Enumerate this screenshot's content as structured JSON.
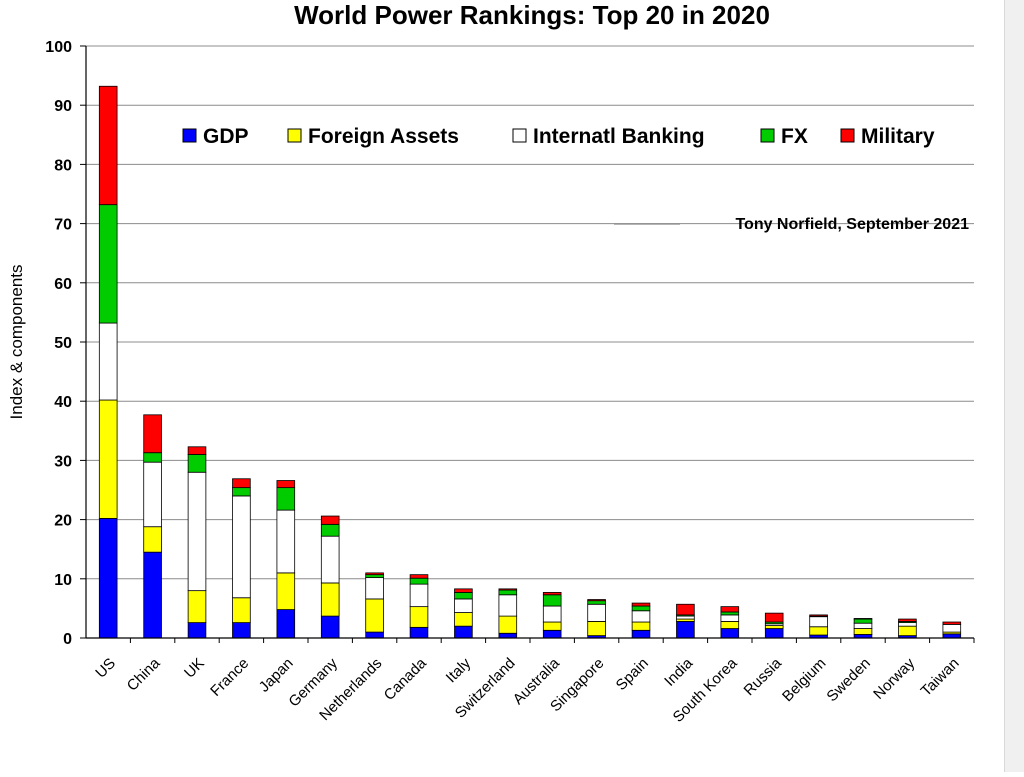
{
  "chart_data": {
    "type": "bar",
    "stacked": true,
    "title": "World Power Rankings: Top 20 in 2020",
    "xlabel": "",
    "ylabel": "Index & components",
    "ylim": [
      0,
      100
    ],
    "yticks": [
      0,
      10,
      20,
      30,
      40,
      50,
      60,
      70,
      80,
      90,
      100
    ],
    "grid": true,
    "legend_position": "top",
    "annotation": "Tony Norfield, September 2021",
    "categories": [
      "US",
      "China",
      "UK",
      "France",
      "Japan",
      "Germany",
      "Netherlands",
      "Canada",
      "Italy",
      "Switzerland",
      "Australia",
      "Singapore",
      "Spain",
      "India",
      "South Korea",
      "Russia",
      "Belgium",
      "Sweden",
      "Norway",
      "Taiwan"
    ],
    "series": [
      {
        "name": "GDP",
        "color": "#0000ff",
        "values": [
          20.2,
          14.5,
          2.6,
          2.6,
          4.8,
          3.7,
          1.0,
          1.8,
          2.0,
          0.8,
          1.3,
          0.4,
          1.3,
          2.8,
          1.6,
          1.6,
          0.5,
          0.6,
          0.4,
          0.7
        ]
      },
      {
        "name": "Foreign Assets",
        "color": "#ffff00",
        "values": [
          20.0,
          4.3,
          5.4,
          4.2,
          6.2,
          5.6,
          5.6,
          3.5,
          2.3,
          2.9,
          1.4,
          2.4,
          1.4,
          0.4,
          1.2,
          0.5,
          1.4,
          1.0,
          1.6,
          0.3
        ]
      },
      {
        "name": "Internatl Banking",
        "color": "#ffffff",
        "values": [
          13.0,
          10.9,
          20.0,
          17.2,
          10.6,
          7.9,
          3.6,
          3.8,
          2.3,
          3.6,
          2.7,
          2.9,
          1.9,
          0.5,
          1.1,
          0.3,
          1.7,
          0.9,
          0.6,
          1.3
        ]
      },
      {
        "name": "FX",
        "color": "#00cc00",
        "values": [
          20.0,
          1.6,
          3.0,
          1.4,
          3.8,
          2.0,
          0.5,
          1.0,
          1.1,
          0.8,
          1.9,
          0.6,
          0.8,
          0.2,
          0.5,
          0.3,
          0.1,
          0.7,
          0.2,
          0.0
        ]
      },
      {
        "name": "Military",
        "color": "#ff0000",
        "values": [
          20.0,
          6.4,
          1.3,
          1.5,
          1.2,
          1.4,
          0.3,
          0.6,
          0.6,
          0.2,
          0.4,
          0.2,
          0.5,
          1.8,
          0.9,
          1.5,
          0.2,
          0.1,
          0.4,
          0.4
        ]
      }
    ]
  }
}
